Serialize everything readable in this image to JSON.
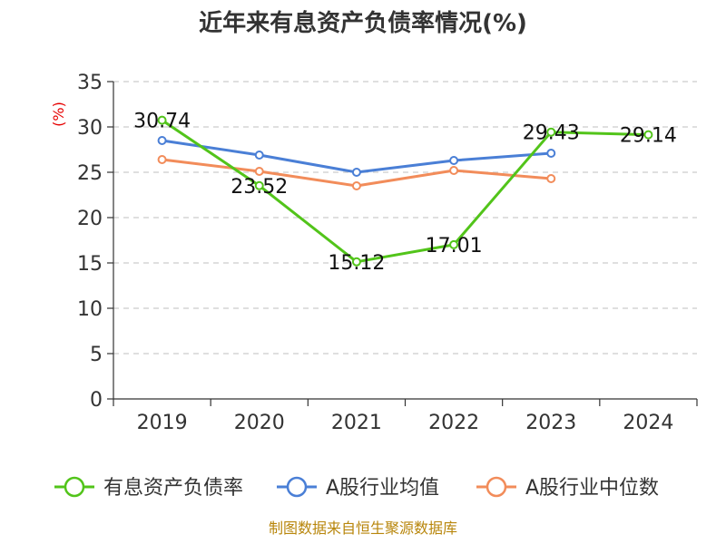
{
  "chart_data": {
    "type": "line",
    "title": "近年来有息资产负债率情况(%)",
    "ylabel": "(%)",
    "categories": [
      "2019",
      "2020",
      "2021",
      "2022",
      "2023",
      "2024"
    ],
    "yticks": [
      "0",
      "5",
      "10",
      "15",
      "20",
      "25",
      "30",
      "35"
    ],
    "ylim": [
      0,
      35
    ],
    "grid": true,
    "legend_position": "bottom",
    "series": [
      {
        "name": "有息资产负债率",
        "color": "#52c41a",
        "values": [
          30.74,
          23.52,
          15.12,
          17.01,
          29.43,
          29.14
        ],
        "labels": [
          "30.74",
          "23.52",
          "15.12",
          "17.01",
          "29.43",
          "29.14"
        ]
      },
      {
        "name": "A股行业均值",
        "color": "#4a7fd6",
        "values": [
          28.5,
          26.9,
          25.0,
          26.3,
          27.1,
          null
        ]
      },
      {
        "name": "A股行业中位数",
        "color": "#f28c5a",
        "values": [
          26.4,
          25.1,
          23.5,
          25.2,
          24.3,
          null
        ]
      }
    ]
  },
  "footer": "制图数据来自恒生聚源数据库"
}
